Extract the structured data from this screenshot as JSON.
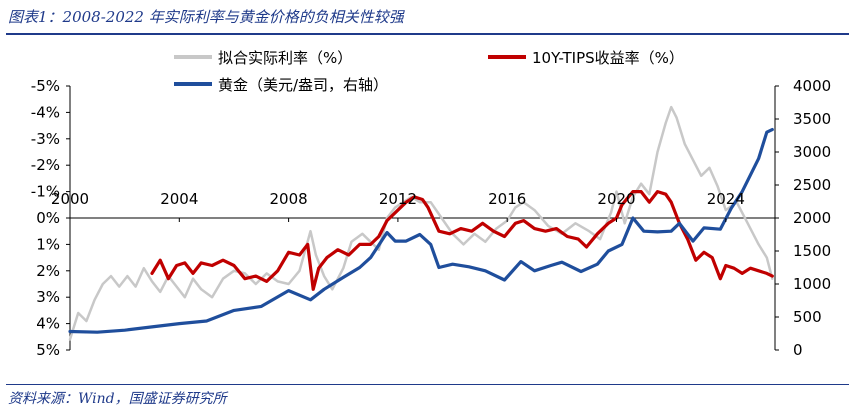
{
  "figure": {
    "title": "图表1：2008-2022 年实际利率与黄金价格的负相关性较强",
    "source": "资料来源：Wind，国盛证券研究所"
  },
  "colors": {
    "synthetic": "#c8c8c8",
    "tips": "#c00000",
    "gold": "#1f4e9c",
    "axis": "#000000",
    "title": "#1f3a8a"
  },
  "chart_data": {
    "type": "line",
    "title": "2008-2022 年实际利率与黄金价格的负相关性较强",
    "x_axis": {
      "ticks": [
        "2000",
        "2004",
        "2008",
        "2012",
        "2016",
        "2020",
        "2024"
      ],
      "range": [
        2000,
        2025.8
      ]
    },
    "y_left": {
      "range": [
        5,
        -5
      ],
      "inverted": true,
      "ticks": [
        -5,
        -4,
        -3,
        -2,
        -1,
        0,
        1,
        2,
        3,
        4,
        5
      ],
      "tick_labels": [
        "-5%",
        "-4%",
        "-3%",
        "-2%",
        "-1%",
        "0%",
        "1%",
        "2%",
        "3%",
        "4%",
        "5%"
      ]
    },
    "y_right": {
      "range": [
        0,
        4000
      ],
      "ticks": [
        0,
        500,
        1000,
        1500,
        2000,
        2500,
        3000,
        3500,
        4000
      ],
      "tick_labels": [
        "0",
        "500",
        "1000",
        "1500",
        "2000",
        "2500",
        "3000",
        "3500",
        "4000"
      ]
    },
    "legend": [
      "拟合实际利率（%）",
      "10Y-TIPS收益率（%）",
      "黄金（美元/盎司，右轴）"
    ],
    "series": [
      {
        "name": "拟合实际利率（%）",
        "axis": "left",
        "points": [
          [
            2000.0,
            4.6
          ],
          [
            2000.3,
            3.6
          ],
          [
            2000.6,
            3.9
          ],
          [
            2000.9,
            3.1
          ],
          [
            2001.2,
            2.5
          ],
          [
            2001.5,
            2.2
          ],
          [
            2001.8,
            2.6
          ],
          [
            2002.1,
            2.2
          ],
          [
            2002.4,
            2.6
          ],
          [
            2002.7,
            1.9
          ],
          [
            2003.0,
            2.4
          ],
          [
            2003.3,
            2.8
          ],
          [
            2003.6,
            2.2
          ],
          [
            2003.9,
            2.6
          ],
          [
            2004.2,
            3.0
          ],
          [
            2004.5,
            2.3
          ],
          [
            2004.8,
            2.7
          ],
          [
            2005.2,
            3.0
          ],
          [
            2005.6,
            2.3
          ],
          [
            2006.0,
            2.0
          ],
          [
            2006.4,
            2.1
          ],
          [
            2006.8,
            2.5
          ],
          [
            2007.2,
            2.1
          ],
          [
            2007.6,
            2.4
          ],
          [
            2008.0,
            2.5
          ],
          [
            2008.4,
            2.0
          ],
          [
            2008.8,
            0.5
          ],
          [
            2009.0,
            1.4
          ],
          [
            2009.3,
            2.2
          ],
          [
            2009.6,
            2.7
          ],
          [
            2010.0,
            1.9
          ],
          [
            2010.3,
            0.9
          ],
          [
            2010.7,
            0.6
          ],
          [
            2011.0,
            0.9
          ],
          [
            2011.3,
            1.2
          ],
          [
            2011.6,
            0.0
          ],
          [
            2011.9,
            -0.4
          ],
          [
            2012.2,
            -0.6
          ],
          [
            2012.5,
            -0.8
          ],
          [
            2012.8,
            -0.6
          ],
          [
            2013.2,
            -0.6
          ],
          [
            2013.6,
            0.0
          ],
          [
            2014.0,
            0.6
          ],
          [
            2014.4,
            1.0
          ],
          [
            2014.8,
            0.6
          ],
          [
            2015.2,
            0.9
          ],
          [
            2015.6,
            0.4
          ],
          [
            2016.0,
            0.1
          ],
          [
            2016.3,
            -0.4
          ],
          [
            2016.6,
            -0.6
          ],
          [
            2017.0,
            -0.3
          ],
          [
            2017.5,
            0.3
          ],
          [
            2018.0,
            0.6
          ],
          [
            2018.5,
            0.2
          ],
          [
            2019.0,
            0.5
          ],
          [
            2019.4,
            0.8
          ],
          [
            2019.8,
            -0.2
          ],
          [
            2020.0,
            -1.0
          ],
          [
            2020.3,
            0.2
          ],
          [
            2020.6,
            -0.8
          ],
          [
            2020.9,
            -1.3
          ],
          [
            2021.2,
            -0.9
          ],
          [
            2021.5,
            -2.5
          ],
          [
            2021.8,
            -3.6
          ],
          [
            2022.0,
            -4.2
          ],
          [
            2022.2,
            -3.8
          ],
          [
            2022.5,
            -2.8
          ],
          [
            2022.8,
            -2.2
          ],
          [
            2023.1,
            -1.6
          ],
          [
            2023.4,
            -1.9
          ],
          [
            2023.7,
            -1.2
          ],
          [
            2024.0,
            -0.3
          ],
          [
            2024.4,
            -0.6
          ],
          [
            2024.8,
            0.2
          ],
          [
            2025.2,
            1.0
          ],
          [
            2025.5,
            1.5
          ],
          [
            2025.7,
            2.3
          ]
        ]
      },
      {
        "name": "10Y-TIPS收益率（%）",
        "axis": "left",
        "points": [
          [
            2003.0,
            2.1
          ],
          [
            2003.3,
            1.6
          ],
          [
            2003.6,
            2.3
          ],
          [
            2003.9,
            1.8
          ],
          [
            2004.2,
            1.7
          ],
          [
            2004.5,
            2.1
          ],
          [
            2004.8,
            1.7
          ],
          [
            2005.2,
            1.8
          ],
          [
            2005.6,
            1.6
          ],
          [
            2006.0,
            1.8
          ],
          [
            2006.4,
            2.3
          ],
          [
            2006.8,
            2.2
          ],
          [
            2007.2,
            2.4
          ],
          [
            2007.6,
            2.0
          ],
          [
            2008.0,
            1.3
          ],
          [
            2008.4,
            1.4
          ],
          [
            2008.7,
            1.0
          ],
          [
            2008.9,
            2.7
          ],
          [
            2009.1,
            1.9
          ],
          [
            2009.4,
            1.5
          ],
          [
            2009.8,
            1.2
          ],
          [
            2010.2,
            1.4
          ],
          [
            2010.6,
            1.0
          ],
          [
            2011.0,
            1.0
          ],
          [
            2011.3,
            0.7
          ],
          [
            2011.6,
            0.1
          ],
          [
            2011.9,
            -0.2
          ],
          [
            2012.3,
            -0.6
          ],
          [
            2012.6,
            -0.8
          ],
          [
            2012.9,
            -0.7
          ],
          [
            2013.1,
            -0.4
          ],
          [
            2013.5,
            0.5
          ],
          [
            2013.9,
            0.6
          ],
          [
            2014.3,
            0.4
          ],
          [
            2014.7,
            0.5
          ],
          [
            2015.1,
            0.2
          ],
          [
            2015.5,
            0.5
          ],
          [
            2015.9,
            0.7
          ],
          [
            2016.3,
            0.2
          ],
          [
            2016.6,
            0.1
          ],
          [
            2017.0,
            0.4
          ],
          [
            2017.4,
            0.5
          ],
          [
            2017.8,
            0.4
          ],
          [
            2018.2,
            0.7
          ],
          [
            2018.6,
            0.8
          ],
          [
            2018.9,
            1.1
          ],
          [
            2019.3,
            0.6
          ],
          [
            2019.7,
            0.2
          ],
          [
            2020.0,
            0.0
          ],
          [
            2020.2,
            -0.5
          ],
          [
            2020.6,
            -1.0
          ],
          [
            2020.9,
            -1.0
          ],
          [
            2021.2,
            -0.6
          ],
          [
            2021.5,
            -1.0
          ],
          [
            2021.8,
            -0.9
          ],
          [
            2022.0,
            -0.6
          ],
          [
            2022.3,
            0.2
          ],
          [
            2022.6,
            0.8
          ],
          [
            2022.9,
            1.6
          ],
          [
            2023.2,
            1.3
          ],
          [
            2023.5,
            1.5
          ],
          [
            2023.8,
            2.3
          ],
          [
            2024.0,
            1.8
          ],
          [
            2024.3,
            1.9
          ],
          [
            2024.6,
            2.1
          ],
          [
            2024.9,
            1.9
          ],
          [
            2025.2,
            2.0
          ],
          [
            2025.5,
            2.1
          ],
          [
            2025.7,
            2.2
          ]
        ]
      },
      {
        "name": "黄金（美元/盎司，右轴）",
        "axis": "right",
        "points": [
          [
            2000.0,
            280
          ],
          [
            2001.0,
            270
          ],
          [
            2002.0,
            300
          ],
          [
            2003.0,
            350
          ],
          [
            2004.0,
            400
          ],
          [
            2005.0,
            440
          ],
          [
            2006.0,
            600
          ],
          [
            2007.0,
            660
          ],
          [
            2008.0,
            900
          ],
          [
            2008.8,
            760
          ],
          [
            2009.3,
            920
          ],
          [
            2010.0,
            1100
          ],
          [
            2010.6,
            1250
          ],
          [
            2011.0,
            1400
          ],
          [
            2011.6,
            1780
          ],
          [
            2011.9,
            1650
          ],
          [
            2012.3,
            1650
          ],
          [
            2012.8,
            1750
          ],
          [
            2013.2,
            1600
          ],
          [
            2013.5,
            1250
          ],
          [
            2014.0,
            1300
          ],
          [
            2014.6,
            1260
          ],
          [
            2015.2,
            1200
          ],
          [
            2015.9,
            1060
          ],
          [
            2016.5,
            1340
          ],
          [
            2017.0,
            1200
          ],
          [
            2017.6,
            1280
          ],
          [
            2018.0,
            1330
          ],
          [
            2018.7,
            1190
          ],
          [
            2019.3,
            1300
          ],
          [
            2019.7,
            1500
          ],
          [
            2020.2,
            1600
          ],
          [
            2020.6,
            2000
          ],
          [
            2021.0,
            1800
          ],
          [
            2021.5,
            1790
          ],
          [
            2022.0,
            1800
          ],
          [
            2022.3,
            1920
          ],
          [
            2022.8,
            1650
          ],
          [
            2023.2,
            1850
          ],
          [
            2023.8,
            1830
          ],
          [
            2024.2,
            2150
          ],
          [
            2024.6,
            2400
          ],
          [
            2024.9,
            2650
          ],
          [
            2025.2,
            2900
          ],
          [
            2025.5,
            3300
          ],
          [
            2025.7,
            3340
          ]
        ]
      }
    ]
  }
}
